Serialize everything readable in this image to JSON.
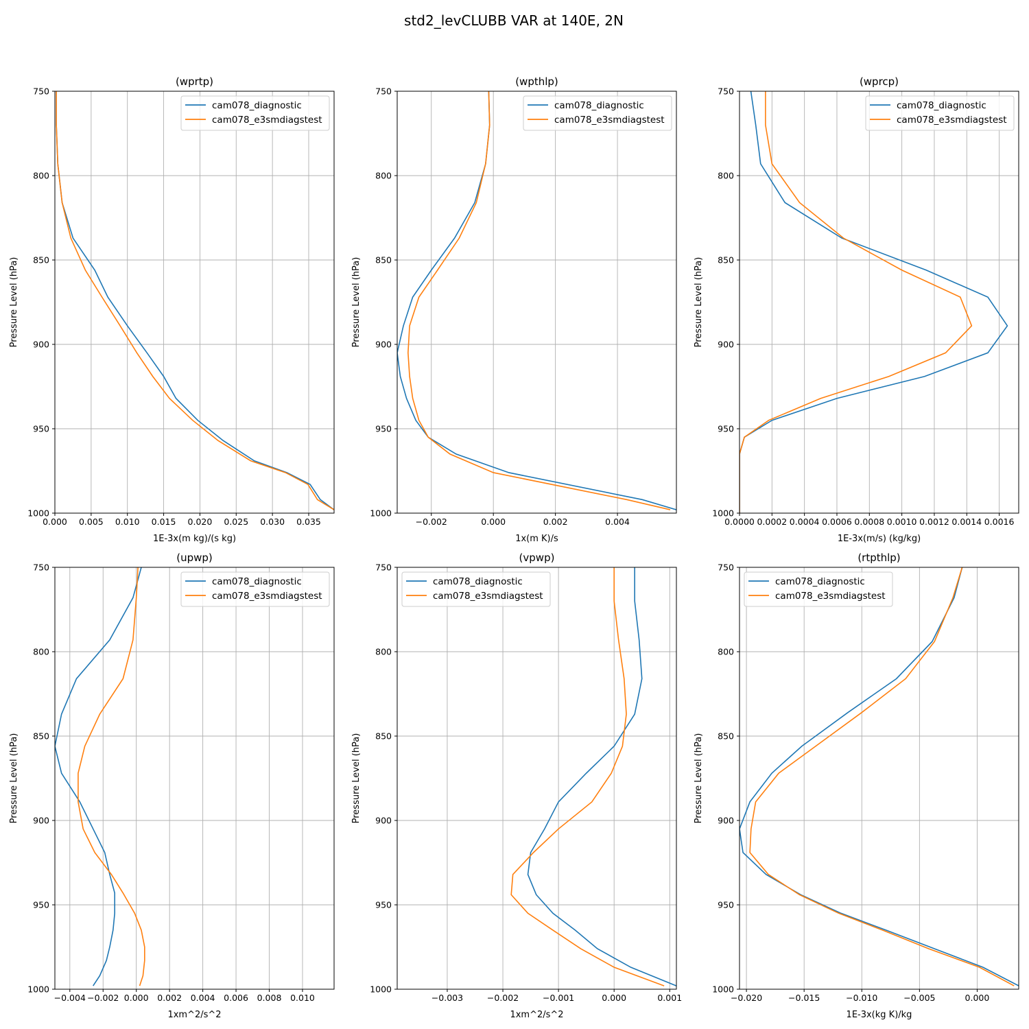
{
  "figure": {
    "title": "std2_levCLUBB VAR at 140E, 2N"
  },
  "colors": {
    "cam078_diagnostic": "#1f77b4",
    "cam078_e3smdiagstest": "#ff7f0e",
    "grid": "#b0b0b0"
  },
  "chart_data": [
    {
      "type": "line",
      "title": "(wprtp)",
      "xlabel": "1E-3x(m kg)/(s kg)",
      "ylabel": "Pressure Level (hPa)",
      "xlim": [
        0,
        0.0385
      ],
      "ylim": [
        1000,
        750
      ],
      "xticks": [
        0,
        0.005,
        0.01,
        0.015,
        0.02,
        0.025,
        0.03,
        0.035
      ],
      "xtick_labels": [
        "0.000",
        "0.005",
        "0.010",
        "0.015",
        "0.020",
        "0.025",
        "0.030",
        "0.035"
      ],
      "yticks": [
        750,
        800,
        850,
        900,
        950,
        1000
      ],
      "ytick_labels": [
        "750",
        "800",
        "850",
        "900",
        "950",
        "1000"
      ],
      "grid": true,
      "legend": "upper right",
      "series": [
        {
          "name": "cam078_diagnostic",
          "x": [
            0.0002,
            0.0002,
            0.0004,
            0.001,
            0.0025,
            0.0055,
            0.0073,
            0.01,
            0.0127,
            0.015,
            0.0167,
            0.0197,
            0.0232,
            0.0275,
            0.032,
            0.0352,
            0.0366,
            0.0385
          ],
          "y": [
            750,
            770,
            793,
            816,
            837,
            856,
            872,
            889,
            905,
            919,
            932,
            945,
            957,
            969,
            976,
            983,
            992,
            998
          ]
        },
        {
          "name": "cam078_e3smdiagstest",
          "x": [
            0.0002,
            0.0002,
            0.0004,
            0.001,
            0.0022,
            0.0042,
            0.0065,
            0.009,
            0.0113,
            0.0135,
            0.0158,
            0.019,
            0.0225,
            0.027,
            0.0318,
            0.0349,
            0.0362,
            0.0385
          ],
          "y": [
            750,
            770,
            793,
            816,
            837,
            856,
            872,
            889,
            905,
            919,
            932,
            945,
            957,
            969,
            976,
            983,
            992,
            998
          ]
        }
      ]
    },
    {
      "type": "line",
      "title": "(wpthlp)",
      "xlabel": "1x(m K)/s",
      "ylabel": "Pressure Level (hPa)",
      "xlim": [
        -0.0031,
        0.0059
      ],
      "ylim": [
        1000,
        750
      ],
      "xticks": [
        -0.002,
        0.0,
        0.002,
        0.004
      ],
      "xtick_labels": [
        "−0.002",
        "0.000",
        "0.002",
        "0.004"
      ],
      "yticks": [
        750,
        800,
        850,
        900,
        950,
        1000
      ],
      "ytick_labels": [
        "750",
        "800",
        "850",
        "900",
        "950",
        "1000"
      ],
      "grid": true,
      "legend": "upper right",
      "series": [
        {
          "name": "cam078_diagnostic",
          "x": [
            -0.00015,
            -0.00012,
            -0.00025,
            -0.0006,
            -0.00125,
            -0.002,
            -0.0026,
            -0.0029,
            -0.0031,
            -0.003,
            -0.0028,
            -0.0025,
            -0.0021,
            -0.0012,
            0.0005,
            0.0048,
            0.0059
          ],
          "y": [
            750,
            770,
            793,
            816,
            837,
            856,
            872,
            889,
            905,
            919,
            932,
            945,
            955,
            965,
            976,
            992,
            998
          ]
        },
        {
          "name": "cam078_e3smdiagstest",
          "x": [
            -0.00015,
            -0.00012,
            -0.00025,
            -0.00055,
            -0.0011,
            -0.0018,
            -0.0024,
            -0.0027,
            -0.00275,
            -0.0027,
            -0.0026,
            -0.0024,
            -0.0021,
            -0.0014,
            0.0,
            0.0043,
            0.0057
          ],
          "y": [
            750,
            770,
            793,
            816,
            837,
            856,
            872,
            889,
            905,
            919,
            932,
            945,
            955,
            965,
            976,
            992,
            998
          ]
        }
      ]
    },
    {
      "type": "line",
      "title": "(wprcp)",
      "xlabel": "1E-3x(m/s) (kg/kg)",
      "ylabel": "Pressure Level (hPa)",
      "xlim": [
        0,
        0.00172
      ],
      "ylim": [
        1000,
        750
      ],
      "xticks": [
        0,
        0.0002,
        0.0004,
        0.0006,
        0.0008,
        0.001,
        0.0012,
        0.0014,
        0.0016
      ],
      "xtick_labels": [
        "0.0000",
        "0.0002",
        "0.0004",
        "0.0006",
        "0.0008",
        "0.0010",
        "0.0012",
        "0.0014",
        "0.0016"
      ],
      "yticks": [
        750,
        800,
        850,
        900,
        950,
        1000
      ],
      "ytick_labels": [
        "750",
        "800",
        "850",
        "900",
        "950",
        "1000"
      ],
      "grid": true,
      "legend": "upper right",
      "series": [
        {
          "name": "cam078_diagnostic",
          "x": [
            7e-05,
            0.0001,
            0.00013,
            0.00028,
            0.00063,
            0.00115,
            0.00153,
            0.00165,
            0.00153,
            0.00114,
            0.0006,
            0.0002,
            3e-05,
            0.0,
            0.0
          ],
          "y": [
            750,
            770,
            793,
            816,
            837,
            856,
            872,
            889,
            905,
            919,
            932,
            945,
            955,
            965,
            1000
          ]
        },
        {
          "name": "cam078_e3smdiagstest",
          "x": [
            0.00016,
            0.00016,
            0.0002,
            0.00037,
            0.00064,
            0.001,
            0.00136,
            0.00143,
            0.00127,
            0.00092,
            0.0005,
            0.00018,
            3e-05,
            0.0,
            0.0
          ],
          "y": [
            750,
            770,
            793,
            816,
            837,
            856,
            872,
            889,
            905,
            919,
            932,
            945,
            955,
            965,
            1000
          ]
        }
      ]
    },
    {
      "type": "line",
      "title": "(upwp)",
      "xlabel": "1xm^2/s^2",
      "ylabel": "Pressure Level (hPa)",
      "xlim": [
        -0.0049,
        0.0119
      ],
      "ylim": [
        1000,
        750
      ],
      "xticks": [
        -0.004,
        -0.002,
        0.0,
        0.002,
        0.004,
        0.006,
        0.008,
        0.01
      ],
      "xtick_labels": [
        "−0.004",
        "−0.002",
        "0.000",
        "0.002",
        "0.004",
        "0.006",
        "0.008",
        "0.010"
      ],
      "yticks": [
        750,
        800,
        850,
        900,
        950,
        1000
      ],
      "ytick_labels": [
        "750",
        "800",
        "850",
        "900",
        "950",
        "1000"
      ],
      "grid": true,
      "legend": "upper right",
      "series": [
        {
          "name": "cam078_diagnostic",
          "x": [
            0.0003,
            -0.0002,
            -0.0016,
            -0.0036,
            -0.0045,
            -0.0049,
            -0.0045,
            -0.0034,
            -0.0026,
            -0.0019,
            -0.0016,
            -0.0013,
            -0.0013,
            -0.0014,
            -0.0016,
            -0.0018,
            -0.0022,
            -0.0026
          ],
          "y": [
            750,
            768,
            793,
            816,
            837,
            856,
            872,
            889,
            905,
            919,
            932,
            943,
            955,
            965,
            975,
            983,
            992,
            998
          ]
        },
        {
          "name": "cam078_e3smdiagstest",
          "x": [
            0.0001,
            0.0,
            -0.0002,
            -0.0008,
            -0.0022,
            -0.0031,
            -0.0035,
            -0.0035,
            -0.0032,
            -0.0025,
            -0.0015,
            -0.0008,
            -0.0001,
            0.0003,
            0.0005,
            0.0005,
            0.0004,
            0.0002
          ],
          "y": [
            750,
            768,
            793,
            816,
            837,
            856,
            872,
            889,
            905,
            919,
            932,
            943,
            955,
            965,
            975,
            983,
            992,
            998
          ]
        }
      ]
    },
    {
      "type": "line",
      "title": "(vpwp)",
      "xlabel": "1xm^2/s^2",
      "ylabel": "Pressure Level (hPa)",
      "xlim": [
        -0.0039,
        0.00112
      ],
      "ylim": [
        1000,
        750
      ],
      "xticks": [
        -0.003,
        -0.002,
        -0.001,
        0.0,
        0.001
      ],
      "xtick_labels": [
        "−0.003",
        "−0.002",
        "−0.001",
        "0.000",
        "0.001"
      ],
      "yticks": [
        750,
        800,
        850,
        900,
        950,
        1000
      ],
      "ytick_labels": [
        "750",
        "800",
        "850",
        "900",
        "950",
        "1000"
      ],
      "grid": true,
      "legend": "upper left",
      "series": [
        {
          "name": "cam078_diagnostic",
          "x": [
            0.00037,
            0.00037,
            0.00045,
            0.0005,
            0.00037,
            0.0,
            -0.0005,
            -0.001,
            -0.00125,
            -0.0015,
            -0.00155,
            -0.0014,
            -0.0011,
            -0.0007,
            -0.0003,
            0.0003,
            0.00112
          ],
          "y": [
            750,
            770,
            793,
            816,
            837,
            856,
            872,
            889,
            905,
            919,
            932,
            944,
            955,
            965,
            976,
            987,
            998
          ]
        },
        {
          "name": "cam078_e3smdiagstest",
          "x": [
            0.0,
            0.0,
            8e-05,
            0.00018,
            0.00022,
            0.00015,
            -5e-05,
            -0.0004,
            -0.001,
            -0.00145,
            -0.00182,
            -0.00185,
            -0.00155,
            -0.0011,
            -0.0006,
            0.0,
            0.0009
          ],
          "y": [
            750,
            770,
            793,
            816,
            837,
            856,
            872,
            889,
            905,
            919,
            932,
            944,
            955,
            965,
            976,
            987,
            998
          ]
        }
      ]
    },
    {
      "type": "line",
      "title": "(rtpthlp)",
      "xlabel": "1E-3x(kg K)/kg",
      "ylabel": "Pressure Level (hPa)",
      "xlim": [
        -0.0206,
        0.0036
      ],
      "ylim": [
        1000,
        750
      ],
      "xticks": [
        -0.02,
        -0.015,
        -0.01,
        -0.005,
        0.0
      ],
      "xtick_labels": [
        "−0.020",
        "−0.015",
        "−0.010",
        "−0.005",
        "0.000"
      ],
      "yticks": [
        750,
        800,
        850,
        900,
        950,
        1000
      ],
      "ytick_labels": [
        "750",
        "800",
        "850",
        "900",
        "950",
        "1000"
      ],
      "grid": true,
      "legend": "upper left",
      "series": [
        {
          "name": "cam078_diagnostic",
          "x": [
            -0.0013,
            -0.002,
            -0.0039,
            -0.007,
            -0.0112,
            -0.0152,
            -0.0178,
            -0.0197,
            -0.0206,
            -0.0203,
            -0.0183,
            -0.0153,
            -0.0118,
            -0.0079,
            -0.0037,
            0.0005,
            0.0036
          ],
          "y": [
            750,
            768,
            794,
            816,
            836,
            856,
            872,
            889,
            905,
            919,
            932,
            944,
            955,
            965,
            976,
            987,
            998
          ]
        },
        {
          "name": "cam078_e3smdiagstest",
          "x": [
            -0.0013,
            -0.0021,
            -0.0037,
            -0.0062,
            -0.01,
            -0.014,
            -0.0172,
            -0.0192,
            -0.0196,
            -0.0197,
            -0.0181,
            -0.0154,
            -0.012,
            -0.0082,
            -0.0042,
            0.0002,
            0.0032
          ],
          "y": [
            750,
            768,
            794,
            816,
            836,
            856,
            872,
            889,
            905,
            919,
            932,
            944,
            955,
            965,
            976,
            987,
            998
          ]
        }
      ]
    }
  ]
}
